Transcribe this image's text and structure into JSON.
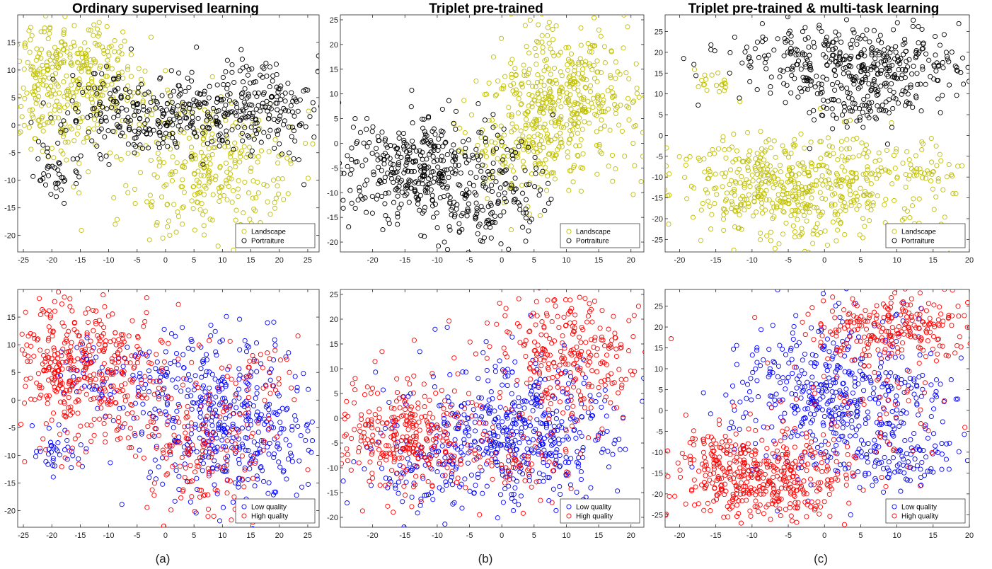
{
  "figure": {
    "captions": [
      "(a)",
      "(b)",
      "(c)"
    ],
    "column_titles": [
      "Ordinary supervised learning",
      "Triplet pre-trained",
      "Triplet pre-trained & multi-task learning"
    ]
  },
  "chart_data": [
    {
      "id": "a-top",
      "type": "scatter",
      "title": "Ordinary supervised learning",
      "xlim": [
        -26,
        27
      ],
      "ylim": [
        -23,
        20
      ],
      "xticks": [
        -25,
        -20,
        -15,
        -10,
        -5,
        0,
        5,
        10,
        15,
        20,
        25
      ],
      "yticks": [
        -20,
        -15,
        -10,
        -5,
        0,
        5,
        10,
        15
      ],
      "legend": "bottom-right",
      "series": [
        {
          "name": "Landscape",
          "color": "#bfbf00",
          "clusters": [
            {
              "cx": -17,
              "cy": 11,
              "sx": 6.5,
              "sy": 4.5,
              "n": 260
            },
            {
              "cx": -20,
              "cy": 1,
              "sx": 4,
              "sy": 5,
              "n": 90
            },
            {
              "cx": 8,
              "cy": -8,
              "sx": 7,
              "sy": 6,
              "n": 280
            },
            {
              "cx": -8,
              "cy": 4,
              "sx": 4,
              "sy": 4,
              "n": 50
            }
          ]
        },
        {
          "name": "Portraiture",
          "color": "#000000",
          "clusters": [
            {
              "cx": -2,
              "cy": 2,
              "sx": 9,
              "sy": 3.5,
              "n": 260
            },
            {
              "cx": 15,
              "cy": 3,
              "sx": 6.5,
              "sy": 4,
              "n": 220
            },
            {
              "cx": -19,
              "cy": -8,
              "sx": 2,
              "sy": 2.5,
              "n": 40
            }
          ]
        }
      ]
    },
    {
      "id": "b-top",
      "type": "scatter",
      "title": "Triplet pre-trained",
      "xlim": [
        -25,
        22
      ],
      "ylim": [
        -22,
        26
      ],
      "xticks": [
        -20,
        -15,
        -10,
        -5,
        0,
        5,
        10,
        15,
        20
      ],
      "yticks": [
        -20,
        -15,
        -10,
        -5,
        0,
        5,
        10,
        15,
        20,
        25
      ],
      "legend": "bottom-right",
      "series": [
        {
          "name": "Landscape",
          "color": "#bfbf00",
          "clusters": [
            {
              "cx": 9,
              "cy": 8,
              "sx": 6,
              "sy": 8,
              "n": 480
            },
            {
              "cx": 3,
              "cy": -2,
              "sx": 4,
              "sy": 4,
              "n": 80
            }
          ]
        },
        {
          "name": "Portraiture",
          "color": "#000000",
          "clusters": [
            {
              "cx": -12,
              "cy": -6,
              "sx": 6,
              "sy": 6,
              "n": 420
            },
            {
              "cx": 0,
              "cy": -12,
              "sx": 4,
              "sy": 5,
              "n": 90
            }
          ]
        }
      ]
    },
    {
      "id": "c-top",
      "type": "scatter",
      "title": "Triplet pre-trained & multi-task learning",
      "xlim": [
        -22,
        20
      ],
      "ylim": [
        -28,
        29
      ],
      "xticks": [
        -20,
        -15,
        -10,
        -5,
        0,
        5,
        10,
        15,
        20
      ],
      "yticks": [
        -25,
        -20,
        -15,
        -10,
        -5,
        0,
        5,
        10,
        15,
        20,
        25
      ],
      "legend": "bottom-right",
      "series": [
        {
          "name": "Landscape",
          "color": "#bfbf00",
          "clusters": [
            {
              "cx": -4,
              "cy": -13,
              "sx": 9,
              "sy": 6.5,
              "n": 560
            },
            {
              "cx": 14,
              "cy": -9,
              "sx": 3,
              "sy": 2.5,
              "n": 40
            },
            {
              "cx": -15,
              "cy": 13,
              "sx": 1.5,
              "sy": 2,
              "n": 20
            }
          ]
        },
        {
          "name": "Portraiture",
          "color": "#000000",
          "clusters": [
            {
              "cx": 5,
              "cy": 17,
              "sx": 8.5,
              "sy": 5,
              "n": 420
            },
            {
              "cx": 4,
              "cy": 6,
              "sx": 4,
              "sy": 3,
              "n": 60
            }
          ]
        }
      ]
    },
    {
      "id": "a-bottom",
      "type": "scatter",
      "xlim": [
        -26,
        27
      ],
      "ylim": [
        -23,
        20
      ],
      "xticks": [
        -25,
        -20,
        -15,
        -10,
        -5,
        0,
        5,
        10,
        15,
        20,
        25
      ],
      "yticks": [
        -20,
        -15,
        -10,
        -5,
        0,
        5,
        10,
        15
      ],
      "legend": "bottom-right",
      "series": [
        {
          "name": "Low quality",
          "color": "#0000ff",
          "clusters": [
            {
              "cx": 12,
              "cy": -4,
              "sx": 7.5,
              "sy": 7.5,
              "n": 420
            },
            {
              "cx": -5,
              "cy": 4,
              "sx": 8,
              "sy": 4,
              "n": 120
            },
            {
              "cx": -19,
              "cy": -9,
              "sx": 2.5,
              "sy": 2,
              "n": 35
            }
          ]
        },
        {
          "name": "High quality",
          "color": "#ff0000",
          "clusters": [
            {
              "cx": -15,
              "cy": 6,
              "sx": 7,
              "sy": 6,
              "n": 420
            },
            {
              "cx": 6,
              "cy": -8,
              "sx": 6,
              "sy": 7,
              "n": 180
            },
            {
              "cx": 17,
              "cy": 4,
              "sx": 4,
              "sy": 4,
              "n": 40
            }
          ]
        }
      ]
    },
    {
      "id": "b-bottom",
      "type": "scatter",
      "xlim": [
        -25,
        22
      ],
      "ylim": [
        -22,
        26
      ],
      "xticks": [
        -20,
        -15,
        -10,
        -5,
        0,
        5,
        10,
        15,
        20
      ],
      "yticks": [
        -20,
        -15,
        -10,
        -5,
        0,
        5,
        10,
        15,
        20,
        25
      ],
      "legend": "bottom-right",
      "series": [
        {
          "name": "Low quality",
          "color": "#0000ff",
          "clusters": [
            {
              "cx": 3,
              "cy": -3,
              "sx": 8,
              "sy": 7,
              "n": 480
            },
            {
              "cx": -12,
              "cy": -10,
              "sx": 5,
              "sy": 5,
              "n": 100
            }
          ]
        },
        {
          "name": "High quality",
          "color": "#ff0000",
          "clusters": [
            {
              "cx": -15,
              "cy": -4,
              "sx": 6,
              "sy": 6,
              "n": 320
            },
            {
              "cx": 10,
              "cy": 13,
              "sx": 6,
              "sy": 7,
              "n": 280
            },
            {
              "cx": 3,
              "cy": -10,
              "sx": 4,
              "sy": 4,
              "n": 60
            }
          ]
        }
      ]
    },
    {
      "id": "c-bottom",
      "type": "scatter",
      "xlim": [
        -22,
        20
      ],
      "ylim": [
        -28,
        29
      ],
      "xticks": [
        -20,
        -15,
        -10,
        -5,
        0,
        5,
        10,
        15,
        20
      ],
      "yticks": [
        -25,
        -20,
        -15,
        -10,
        -5,
        0,
        5,
        10,
        15,
        20,
        25
      ],
      "legend": "bottom-right",
      "series": [
        {
          "name": "Low quality",
          "color": "#0000ff",
          "clusters": [
            {
              "cx": 2,
              "cy": 3,
              "sx": 7.5,
              "sy": 9,
              "n": 500
            },
            {
              "cx": 10,
              "cy": -12,
              "sx": 4,
              "sy": 3,
              "n": 80
            }
          ]
        },
        {
          "name": "High quality",
          "color": "#ff0000",
          "clusters": [
            {
              "cx": -8,
              "cy": -17,
              "sx": 6,
              "sy": 5,
              "n": 380
            },
            {
              "cx": 10,
              "cy": 20,
              "sx": 6,
              "sy": 4,
              "n": 260
            },
            {
              "cx": -15,
              "cy": -10,
              "sx": 3,
              "sy": 3,
              "n": 60
            },
            {
              "cx": 5,
              "cy": 0,
              "sx": 8,
              "sy": 8,
              "n": 80
            }
          ]
        }
      ]
    }
  ]
}
